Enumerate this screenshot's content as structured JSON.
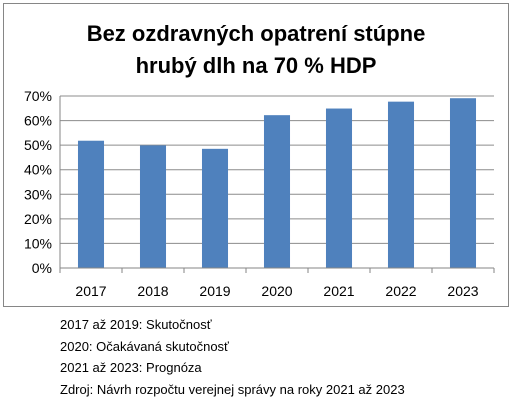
{
  "chart_data": {
    "type": "bar",
    "title_lines": [
      "Bez ozdravných opatrení stúpne",
      "hrubý dlh na 70 % HDP"
    ],
    "categories": [
      "2017",
      "2018",
      "2019",
      "2020",
      "2021",
      "2022",
      "2023"
    ],
    "values": [
      51.8,
      49.9,
      48.5,
      62.2,
      64.9,
      67.7,
      69.1
    ],
    "ylim": [
      0,
      70
    ],
    "yticks": [
      "0%",
      "10%",
      "20%",
      "30%",
      "40%",
      "50%",
      "60%",
      "70%"
    ],
    "grid": true,
    "legend": "none",
    "colors": {
      "bar": "#4f81bd",
      "grid": "#8c8c8c",
      "axis": "#868686"
    }
  },
  "notes": [
    "2017 až 2019: Skutočnosť",
    "2020: Očakávaná skutočnosť",
    "2021 až 2023: Prognóza",
    "Zdroj: Návrh rozpočtu verejnej správy na roky 2021 až 2023"
  ]
}
